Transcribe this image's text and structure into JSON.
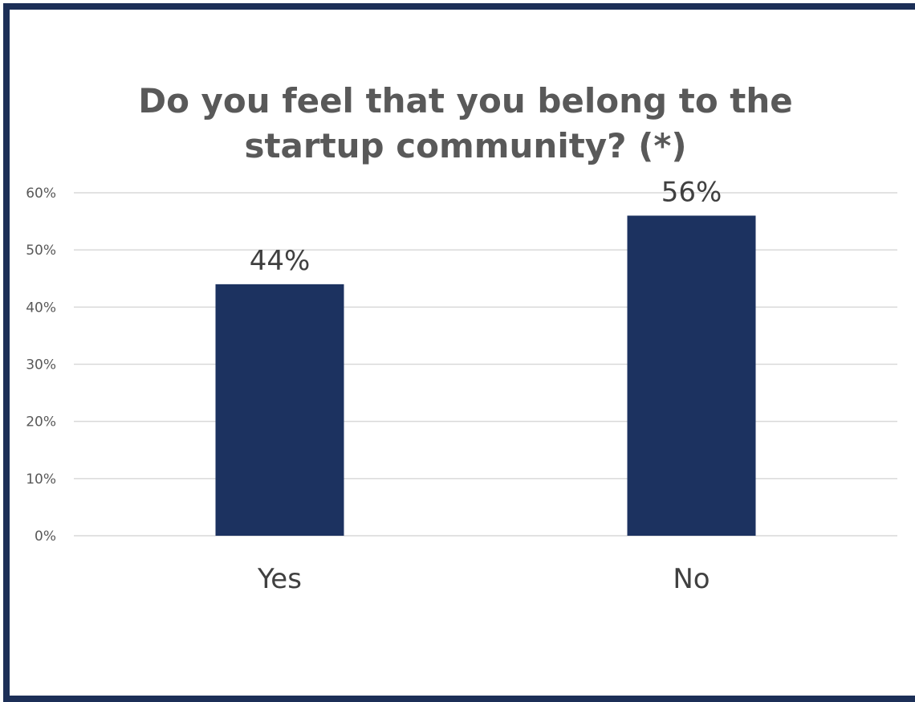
{
  "chart_data": {
    "type": "bar",
    "title_lines": [
      "Do you feel that you belong to the",
      "startup community? (*)"
    ],
    "categories": [
      "Yes",
      "No"
    ],
    "values": [
      44,
      56
    ],
    "data_labels": [
      "44%",
      "56%"
    ],
    "ylim": [
      0,
      60
    ],
    "y_ticks": [
      0,
      10,
      20,
      30,
      40,
      50,
      60
    ],
    "y_tick_labels": [
      "0%",
      "10%",
      "20%",
      "30%",
      "40%",
      "50%",
      "60%"
    ],
    "grid": true,
    "legend": "none",
    "bar_color": "#1c3260"
  },
  "frame_color": "#1c2f57"
}
